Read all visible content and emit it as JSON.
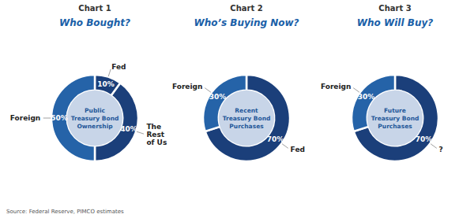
{
  "chart_data": [
    {
      "type": "pie",
      "subtitle": "Chart 1",
      "title": "Who Bought?",
      "categories": [
        "Fed",
        "The\nRest\nof Us",
        "Foreign"
      ],
      "values": [
        10,
        40,
        50
      ],
      "value_labels": [
        "10%",
        "40%",
        "50%"
      ],
      "data_labels": true,
      "colors": [
        "#1b3f7a",
        "#1b3f7a",
        "#2563a8"
      ],
      "annotations": [
        "Public\nTreasury Bond\nOwnership",
        "Source: Federal Reserve, PIMCO estimates"
      ]
    },
    {
      "type": "pie",
      "subtitle": "Chart 2",
      "title": "Who’s Buying Now?",
      "categories": [
        "Fed",
        "Foreign"
      ],
      "values": [
        70,
        30
      ],
      "value_labels": [
        "70%",
        "30%"
      ],
      "data_labels": true,
      "colors": [
        "#1b3f7a",
        "#2563a8"
      ],
      "annotations": [
        "Recent\nTreasury Bond\nPurchases"
      ]
    },
    {
      "type": "pie",
      "subtitle": "Chart 3",
      "title": "Who Will Buy?",
      "categories": [
        "?",
        "Foreign"
      ],
      "values": [
        70,
        30
      ],
      "value_labels": [
        "70%",
        "30%"
      ],
      "data_labels": true,
      "colors": [
        "#1b3f7a",
        "#2563a8"
      ],
      "annotations": [
        "Future\nTreasury Bond\nPurchases"
      ]
    }
  ]
}
